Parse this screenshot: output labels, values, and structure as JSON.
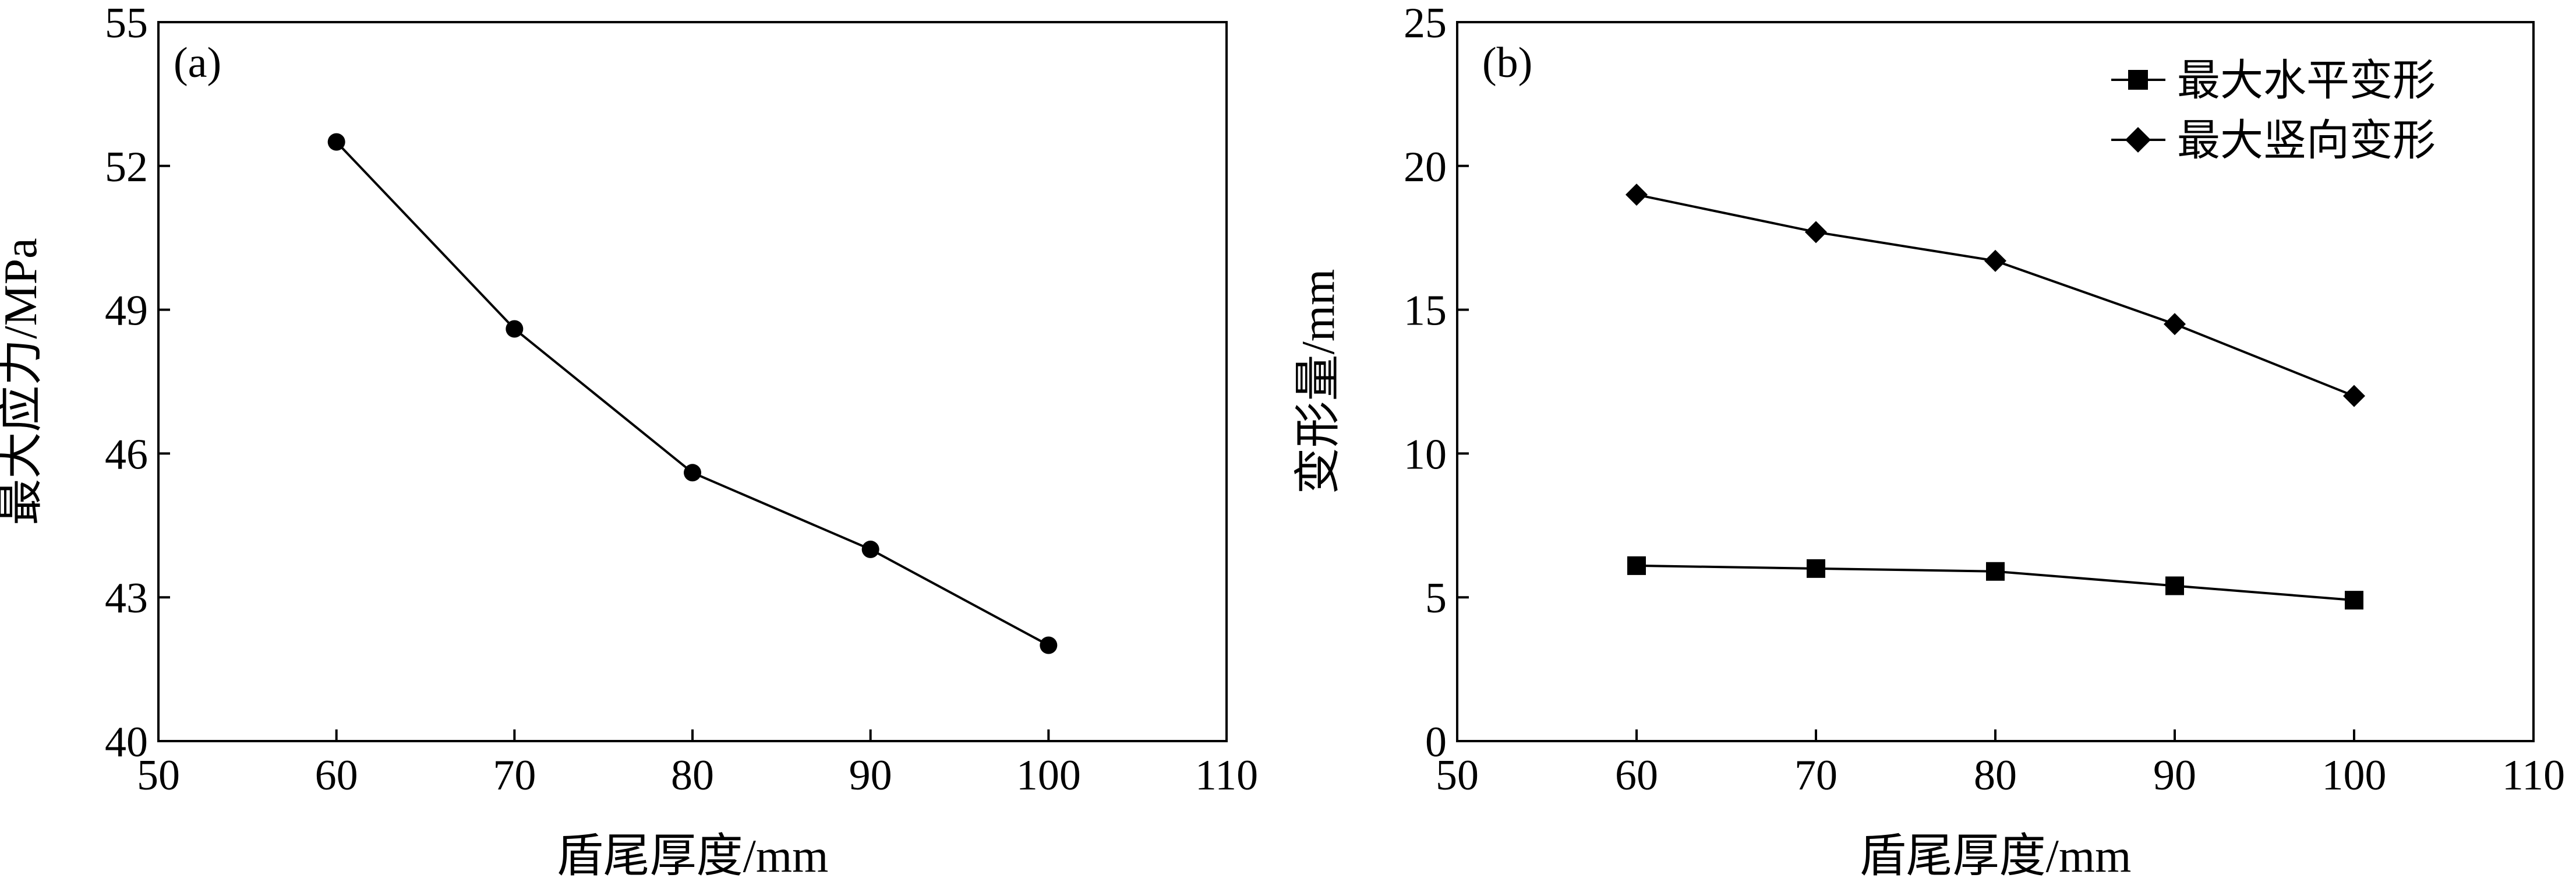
{
  "figure": {
    "colors": {
      "ink": "#000000",
      "background": "#ffffff"
    }
  },
  "chart_data": [
    {
      "panel_label": "(a)",
      "type": "line",
      "x": [
        60,
        70,
        80,
        90,
        100
      ],
      "series": [
        {
          "name": "最大应力",
          "marker": "circle",
          "values": [
            52.5,
            48.6,
            45.6,
            44.0,
            42.0
          ]
        }
      ],
      "xlabel": "盾尾厚度/mm",
      "ylabel": "最大应力/MPa",
      "xlim": [
        50,
        110
      ],
      "ylim": [
        40,
        55
      ],
      "xticks": [
        50,
        60,
        70,
        80,
        90,
        100,
        110
      ],
      "yticks": [
        40,
        43,
        46,
        49,
        52,
        55
      ],
      "grid": false,
      "legend": null
    },
    {
      "panel_label": "(b)",
      "type": "line",
      "x": [
        60,
        70,
        80,
        90,
        100
      ],
      "series": [
        {
          "name": "最大水平变形",
          "marker": "square",
          "values": [
            6.1,
            6.0,
            5.9,
            5.4,
            4.9
          ]
        },
        {
          "name": "最大竖向变形",
          "marker": "diamond",
          "values": [
            19.0,
            17.7,
            16.7,
            14.5,
            12.0
          ]
        }
      ],
      "xlabel": "盾尾厚度/mm",
      "ylabel": "变形量/mm",
      "xlim": [
        50,
        110
      ],
      "ylim": [
        0,
        25
      ],
      "xticks": [
        50,
        60,
        70,
        80,
        90,
        100,
        110
      ],
      "yticks": [
        0,
        5,
        10,
        15,
        20,
        25
      ],
      "grid": false,
      "legend": "top-right"
    }
  ]
}
